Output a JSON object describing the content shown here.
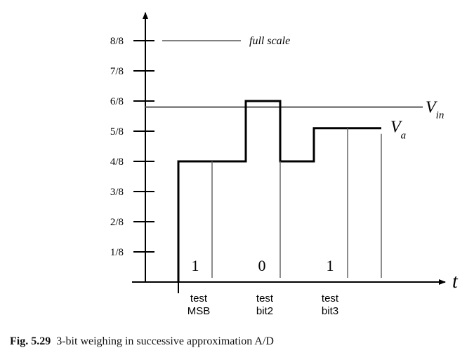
{
  "y_ticks": [
    "1/8",
    "2/8",
    "3/8",
    "4/8",
    "5/8",
    "6/8",
    "7/8",
    "8/8"
  ],
  "full_scale_label": "full scale",
  "vin_label": {
    "main": "V",
    "sub": "in"
  },
  "va_label": {
    "main": "V",
    "sub": "a"
  },
  "t_label": "t",
  "bit_results": [
    "1",
    "0",
    "1"
  ],
  "test_labels": [
    {
      "line1": "test",
      "line2": "MSB"
    },
    {
      "line1": "test",
      "line2": "bit2"
    },
    {
      "line1": "test",
      "line2": "bit3"
    }
  ],
  "levels": {
    "vin": 5.8,
    "full_scale": 8,
    "steps": [
      4,
      6,
      4,
      5.1
    ]
  },
  "caption": {
    "label": "Fig. 5.29",
    "text": "3-bit weighing in successive approximation A/D"
  }
}
